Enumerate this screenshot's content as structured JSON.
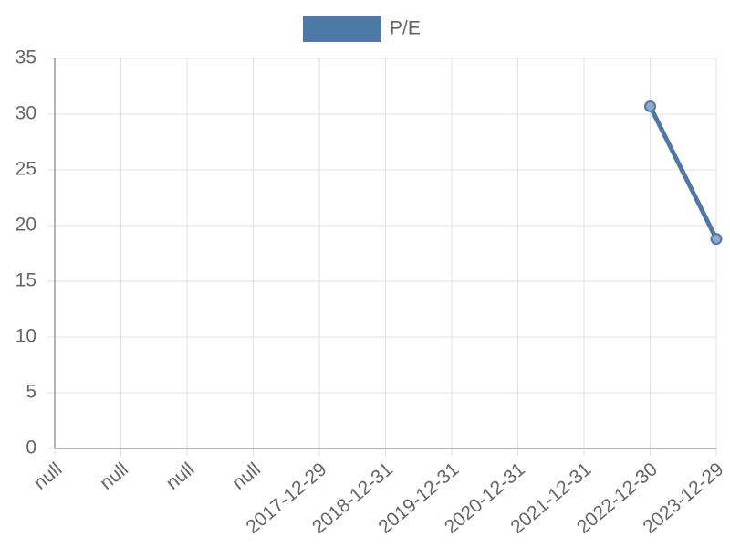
{
  "chart_data": {
    "type": "line",
    "categories": [
      "null",
      "null",
      "null",
      "null",
      "2017-12-29",
      "2018-12-31",
      "2019-12-31",
      "2020-12-31",
      "2021-12-31",
      "2022-12-30",
      "2023-12-29"
    ],
    "series": [
      {
        "name": "P/E",
        "color": "#4e79a7",
        "values": [
          null,
          null,
          null,
          null,
          null,
          null,
          null,
          null,
          null,
          30.7,
          18.8
        ]
      }
    ],
    "ylim": [
      0,
      35
    ],
    "yticks": [
      0,
      5,
      10,
      15,
      20,
      25,
      30,
      35
    ],
    "grid": true,
    "legend": "top"
  }
}
